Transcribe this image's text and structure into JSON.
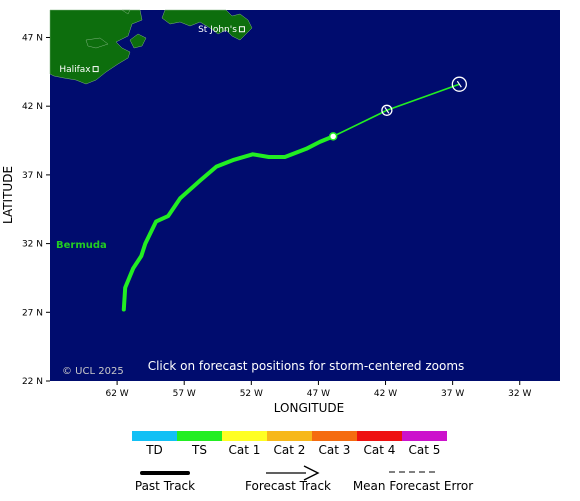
{
  "map": {
    "lon_range": [
      -67,
      -29
    ],
    "lat_range": [
      22,
      49
    ],
    "ocean_color": "#000c6e",
    "land_color": "#0d6e0d",
    "copyright": "© UCL 2025",
    "click_hint": "Click on forecast positions for storm-centered zooms",
    "x_axis_label": "LONGITUDE",
    "y_axis_label": "LATITUDE",
    "x_ticks": [
      {
        "lon": -62,
        "label": "62 W"
      },
      {
        "lon": -57,
        "label": "57 W"
      },
      {
        "lon": -52,
        "label": "52 W"
      },
      {
        "lon": -47,
        "label": "47 W"
      },
      {
        "lon": -42,
        "label": "42 W"
      },
      {
        "lon": -37,
        "label": "37 W"
      },
      {
        "lon": -32,
        "label": "32 W"
      }
    ],
    "y_ticks": [
      {
        "lat": 47,
        "label": "47 N"
      },
      {
        "lat": 42,
        "label": "42 N"
      },
      {
        "lat": 37,
        "label": "37 N"
      },
      {
        "lat": 32,
        "label": "32 N"
      },
      {
        "lat": 27,
        "label": "27 N"
      },
      {
        "lat": 22,
        "label": "22 N"
      }
    ],
    "cities": [
      {
        "name": "St John's",
        "lon": -52.7,
        "lat": 47.6
      },
      {
        "name": "Halifax",
        "lon": -63.6,
        "lat": 44.7
      }
    ],
    "bermuda_label": "Bermuda",
    "bermuda_color": "#22cc22"
  },
  "past_track": [
    [
      -61.5,
      27.2
    ],
    [
      -61.4,
      28.8
    ],
    [
      -60.8,
      30.2
    ],
    [
      -60.2,
      31.1
    ],
    [
      -59.9,
      32.0
    ],
    [
      -59.1,
      33.6
    ],
    [
      -58.2,
      34.0
    ],
    [
      -57.3,
      35.3
    ],
    [
      -55.8,
      36.6
    ],
    [
      -54.6,
      37.6
    ],
    [
      -53.3,
      38.1
    ],
    [
      -51.9,
      38.5
    ],
    [
      -50.7,
      38.3
    ],
    [
      -49.5,
      38.3
    ],
    [
      -47.9,
      38.9
    ],
    [
      -46.9,
      39.4
    ],
    [
      -45.9,
      39.8
    ]
  ],
  "forecast_track": [
    [
      -45.9,
      39.8
    ],
    [
      -41.9,
      41.7
    ],
    [
      -36.5,
      43.6
    ]
  ],
  "forecast_points": [
    {
      "lon": -41.9,
      "lat": 41.7
    },
    {
      "lon": -36.5,
      "lat": 43.6
    }
  ],
  "current_position": {
    "lon": -45.9,
    "lat": 39.8
  },
  "track_color": "#22ee22",
  "legend": {
    "categories": [
      {
        "label": "TD",
        "color": "#12c0f5"
      },
      {
        "label": "TS",
        "color": "#22ee22"
      },
      {
        "label": "Cat 1",
        "color": "#ffff22"
      },
      {
        "label": "Cat 2",
        "color": "#f7b81a"
      },
      {
        "label": "Cat 3",
        "color": "#f56c10"
      },
      {
        "label": "Cat 4",
        "color": "#ee1111"
      },
      {
        "label": "Cat 5",
        "color": "#cc12cc"
      }
    ],
    "past_track_label": "Past Track",
    "forecast_track_label": "Forecast Track",
    "mean_error_label": "Mean Forecast Error"
  }
}
